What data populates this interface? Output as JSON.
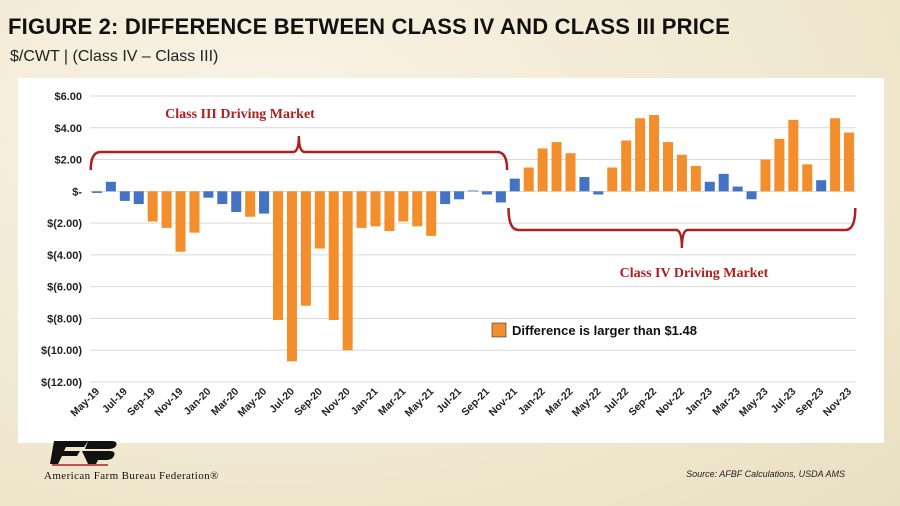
{
  "header": {
    "title": "FIGURE 2: DIFFERENCE BETWEEN CLASS IV AND CLASS III PRICE",
    "subtitle": "$/CWT | (Class IV – Class III)"
  },
  "footer": {
    "org_name": "American Farm Bureau Federation®",
    "source": "Source: AFBF Calculations, USDA AMS"
  },
  "colors": {
    "orange": "#f28e2b",
    "blue": "#4472c4",
    "bracket": "#b01e1e"
  },
  "chart_data": {
    "type": "bar",
    "ylim": [
      -12,
      6
    ],
    "yticks": [
      6,
      4,
      2,
      0,
      -2,
      -4,
      -6,
      -8,
      -10,
      -12
    ],
    "ytick_labels": [
      "$6.00",
      "$4.00",
      "$2.00",
      "$-",
      "$(2.00)",
      "$(4.00)",
      "$(6.00)",
      "$(8.00)",
      "$(10.00)",
      "$(12.00)"
    ],
    "grid": true,
    "threshold": 1.48,
    "months": [
      "May-19",
      "Jun-19",
      "Jul-19",
      "Aug-19",
      "Sep-19",
      "Oct-19",
      "Nov-19",
      "Dec-19",
      "Jan-20",
      "Feb-20",
      "Mar-20",
      "Apr-20",
      "May-20",
      "Jun-20",
      "Jul-20",
      "Aug-20",
      "Sep-20",
      "Oct-20",
      "Nov-20",
      "Dec-20",
      "Jan-21",
      "Feb-21",
      "Mar-21",
      "Apr-21",
      "May-21",
      "Jun-21",
      "Jul-21",
      "Aug-21",
      "Sep-21",
      "Oct-21",
      "Nov-21",
      "Dec-21",
      "Jan-22",
      "Feb-22",
      "Mar-22",
      "Apr-22",
      "May-22",
      "Jun-22",
      "Jul-22",
      "Aug-22",
      "Sep-22",
      "Oct-22",
      "Nov-22",
      "Dec-22",
      "Jan-23",
      "Feb-23",
      "Mar-23",
      "Apr-23",
      "May-23",
      "Jun-23",
      "Jul-23",
      "Aug-23",
      "Sep-23",
      "Oct-23",
      "Nov-23"
    ],
    "x_tick_labels": [
      "May-19",
      "Jul-19",
      "Sep-19",
      "Nov-19",
      "Jan-20",
      "Mar-20",
      "May-20",
      "Jul-20",
      "Sep-20",
      "Nov-20",
      "Jan-21",
      "Mar-21",
      "May-21",
      "Jul-21",
      "Sep-21",
      "Nov-21",
      "Jan-22",
      "Mar-22",
      "May-22",
      "Jul-22",
      "Sep-22",
      "Nov-22",
      "Jan-23",
      "Mar-23",
      "May-23",
      "Jul-23",
      "Sep-23",
      "Nov-23"
    ],
    "values": [
      -0.1,
      0.6,
      -0.6,
      -0.8,
      -1.9,
      -2.3,
      -3.8,
      -2.6,
      -0.4,
      -0.8,
      -1.3,
      -1.6,
      -1.4,
      -8.1,
      -10.7,
      -7.2,
      -3.6,
      -8.1,
      -10.0,
      -2.3,
      -2.2,
      -2.5,
      -1.9,
      -2.2,
      -2.8,
      -0.8,
      -0.5,
      0.0,
      -0.2,
      -0.7,
      0.8,
      1.5,
      2.7,
      3.1,
      2.4,
      0.9,
      -0.2,
      1.5,
      3.2,
      4.6,
      4.8,
      3.1,
      2.3,
      1.6,
      0.6,
      1.1,
      0.3,
      -0.5,
      2.0,
      3.3,
      4.5,
      1.7,
      0.7,
      4.6,
      3.7
    ],
    "annotations": [
      {
        "text": "Class III Driving Market",
        "start": 0,
        "end": 29,
        "side": "above"
      },
      {
        "text": "Class IV Driving Market",
        "start": 30,
        "end": 54,
        "side": "below"
      }
    ],
    "legend": {
      "label": "Difference is larger than $1.48",
      "placement": "lower-right"
    }
  }
}
